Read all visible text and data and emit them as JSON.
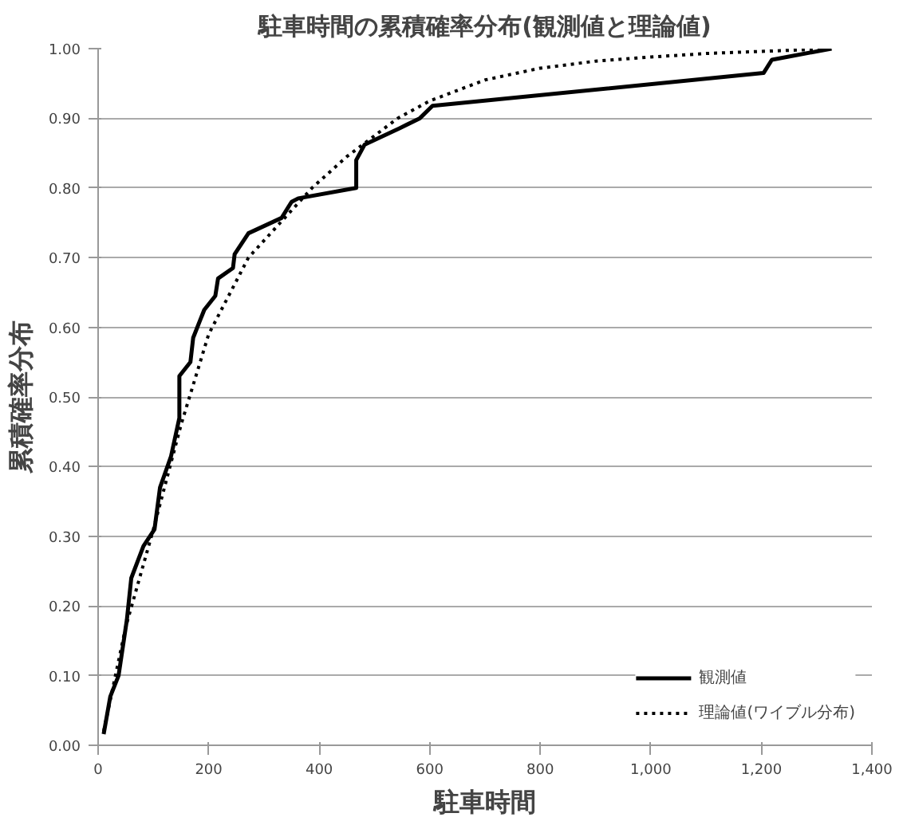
{
  "chart_data": {
    "type": "line",
    "title": "駐車時間の累積確率分布(観測値と理論値)",
    "xlabel": "駐車時間",
    "ylabel": "累積確率分布",
    "series": [
      {
        "name": "観測値",
        "color": "#000000",
        "line_style": "solid",
        "x": [
          10,
          22,
          37,
          52,
          60,
          82,
          102,
          112,
          132,
          147,
          147,
          167,
          172,
          192,
          212,
          217,
          244,
          247,
          272,
          332,
          350,
          362,
          467,
          467,
          482,
          546,
          582,
          605,
          1204,
          1219,
          1327
        ],
        "values": [
          0.016,
          0.07,
          0.1,
          0.18,
          0.24,
          0.286,
          0.31,
          0.37,
          0.415,
          0.47,
          0.53,
          0.55,
          0.585,
          0.625,
          0.645,
          0.67,
          0.685,
          0.705,
          0.735,
          0.757,
          0.78,
          0.785,
          0.8,
          0.84,
          0.862,
          0.886,
          0.9,
          0.918,
          0.965,
          0.984,
          1.0
        ]
      },
      {
        "name": "理論値(ワイブル分布)",
        "color": "#000000",
        "line_style": "dotted",
        "x": [
          10,
          50,
          100,
          150,
          200,
          272,
          387,
          450,
          542,
          600,
          700,
          800,
          900,
          1000,
          1100,
          1200,
          1330
        ],
        "values": [
          0.02,
          0.17,
          0.31,
          0.46,
          0.59,
          0.7,
          0.8,
          0.845,
          0.9,
          0.925,
          0.955,
          0.972,
          0.982,
          0.988,
          0.993,
          0.996,
          1.0
        ]
      }
    ],
    "xlim": [
      0,
      1400
    ],
    "ylim": [
      0,
      1
    ],
    "xticks": [
      0,
      200,
      400,
      600,
      800,
      {
        "value": 1000,
        "label": "1,000"
      },
      {
        "value": 1200,
        "label": "1,200"
      },
      {
        "value": 1400,
        "label": "1,400"
      }
    ],
    "yticks": [
      {
        "value": 0,
        "label": "0.00"
      },
      {
        "value": 0.1,
        "label": "0.10"
      },
      {
        "value": 0.2,
        "label": "0.20"
      },
      {
        "value": 0.3,
        "label": "0.30"
      },
      {
        "value": 0.4,
        "label": "0.40"
      },
      {
        "value": 0.5,
        "label": "0.50"
      },
      {
        "value": 0.6,
        "label": "0.60"
      },
      {
        "value": 0.7,
        "label": "0.70"
      },
      {
        "value": 0.8,
        "label": "0.80"
      },
      {
        "value": 0.9,
        "label": "0.90"
      },
      {
        "value": 1,
        "label": "1.00"
      }
    ],
    "grid": "y",
    "legend": "bottom right",
    "marker": "none"
  }
}
